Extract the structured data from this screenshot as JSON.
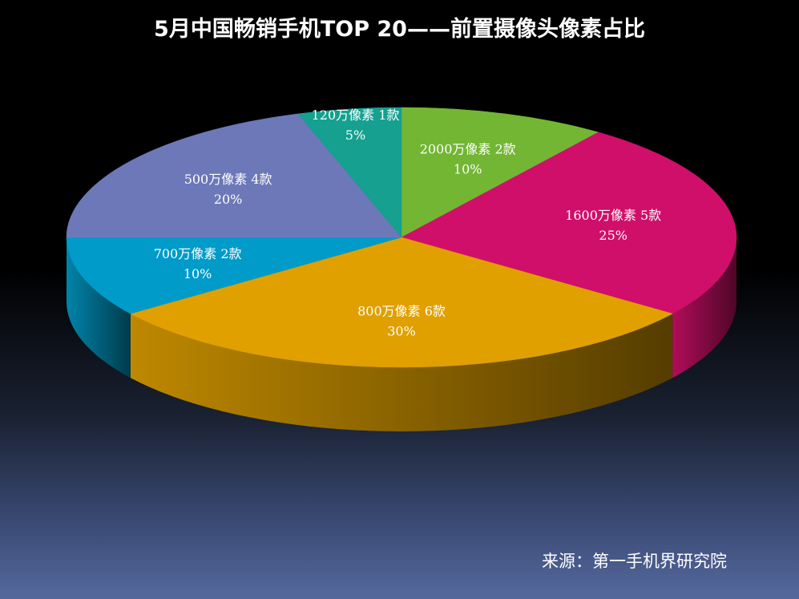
{
  "chart_data": {
    "type": "pie",
    "title": "5月中国畅销手机TOP 20——前置摄像头像素占比",
    "slices": [
      {
        "label": "2000万像素 2款",
        "value": 10,
        "percent_label": "10%",
        "color": "#72b633"
      },
      {
        "label": "1600万像素 5款",
        "value": 25,
        "percent_label": "25%",
        "color": "#cf0f6a"
      },
      {
        "label": "800万像素 6款",
        "value": 30,
        "percent_label": "30%",
        "color": "#e0a000"
      },
      {
        "label": "700万像素 2款",
        "value": 10,
        "percent_label": "10%",
        "color": "#009bc8"
      },
      {
        "label": "500万像素 4款",
        "value": 20,
        "percent_label": "20%",
        "color": "#6c78b8"
      },
      {
        "label": "120万像素 1款",
        "value": 5,
        "percent_label": "5%",
        "color": "#15a090"
      }
    ],
    "style": "3d"
  },
  "source": "来源：第一手机界研究院"
}
